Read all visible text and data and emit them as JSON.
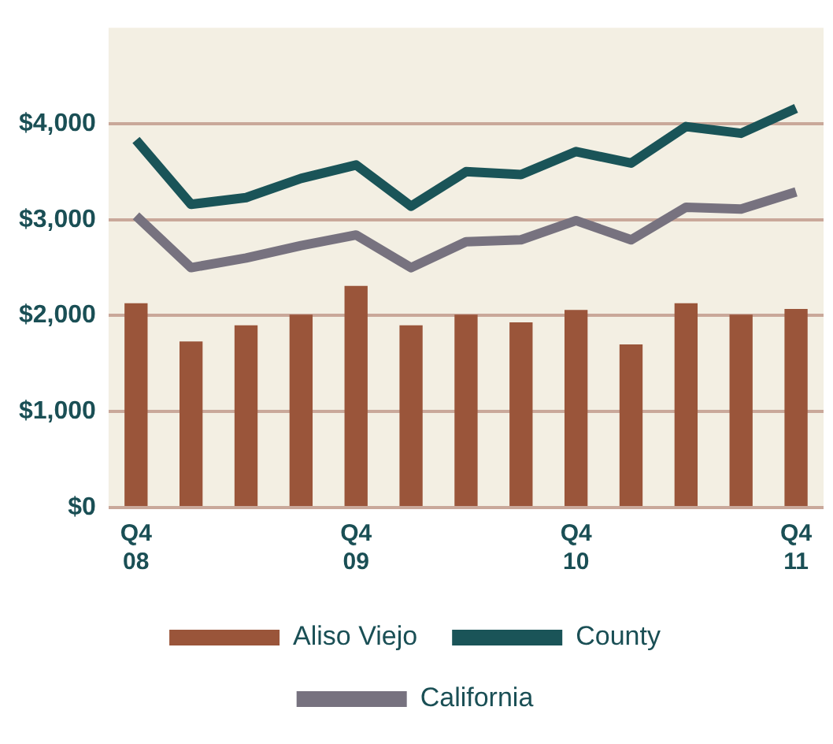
{
  "chart_data": {
    "type": "bar",
    "categories": [
      "Q4\n08",
      null,
      null,
      null,
      "Q4\n09",
      null,
      null,
      null,
      "Q4\n10",
      null,
      null,
      null,
      "Q4\n11"
    ],
    "series": [
      {
        "name": "Aliso Viejo",
        "color": "#9a553a",
        "values": [
          2130,
          1730,
          1900,
          2010,
          2310,
          1900,
          2010,
          1930,
          2060,
          1700,
          2130,
          2010,
          2070
        ]
      },
      {
        "name": "County",
        "type": "line",
        "color": "#1a5458",
        "values": [
          3830,
          3160,
          3230,
          3430,
          3570,
          3140,
          3500,
          3470,
          3710,
          3590,
          3970,
          3900,
          4160
        ]
      },
      {
        "name": "California",
        "type": "line",
        "color": "#77727f",
        "values": [
          3040,
          2500,
          2600,
          2730,
          2840,
          2500,
          2770,
          2790,
          2990,
          2790,
          3130,
          3110,
          3290
        ]
      }
    ],
    "ylim": [
      0,
      5000
    ],
    "yticks": [
      {
        "value": 0,
        "label": "$0"
      },
      {
        "value": 1000,
        "label": "$1,000"
      },
      {
        "value": 2000,
        "label": "$2,000"
      },
      {
        "value": 3000,
        "label": "$3,000"
      },
      {
        "value": 4000,
        "label": "$4,000"
      }
    ],
    "grid": "y",
    "legend": "bottom",
    "marker": "none",
    "line_style": "solid"
  }
}
